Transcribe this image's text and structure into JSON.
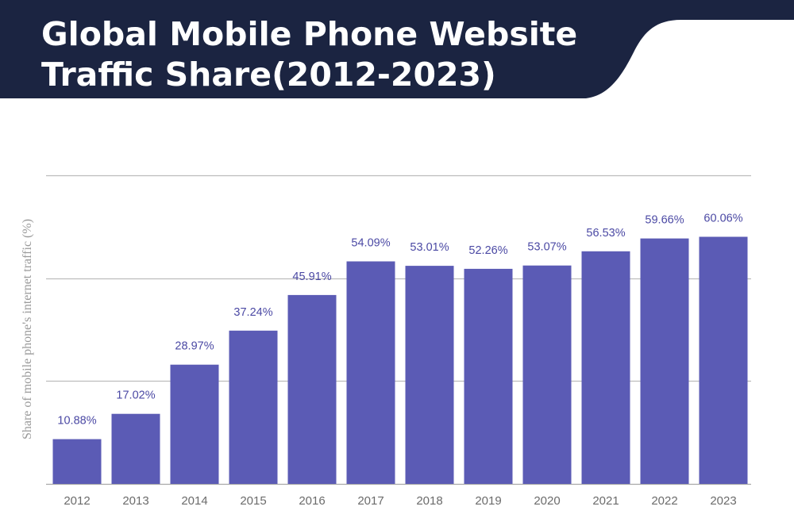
{
  "header": {
    "title_line1": "Global Mobile Phone Website",
    "title_line2": "Traffic Share(2012-2023)"
  },
  "colors": {
    "banner": "#1b2441",
    "bar": "#5b5bb5",
    "label": "#4b49a4",
    "grid": "#bdbdbd"
  },
  "chart_data": {
    "type": "bar",
    "categories": [
      "2012",
      "2013",
      "2014",
      "2015",
      "2016",
      "2017",
      "2018",
      "2019",
      "2020",
      "2021",
      "2022",
      "2023"
    ],
    "values": [
      10.88,
      17.02,
      28.97,
      37.24,
      45.91,
      54.09,
      53.01,
      52.26,
      53.07,
      56.53,
      59.66,
      60.06
    ],
    "data_labels": [
      "10.88%",
      "17.02%",
      "28.97%",
      "37.24%",
      "45.91%",
      "54.09%",
      "53.01%",
      "52.26%",
      "53.07%",
      "56.53%",
      "59.66%",
      "60.06%"
    ],
    "ylabel": "Share of mobile phone's internet traffic (%)",
    "xlabel": "",
    "ylim": [
      0,
      75
    ],
    "grid": true,
    "legend": "none"
  }
}
